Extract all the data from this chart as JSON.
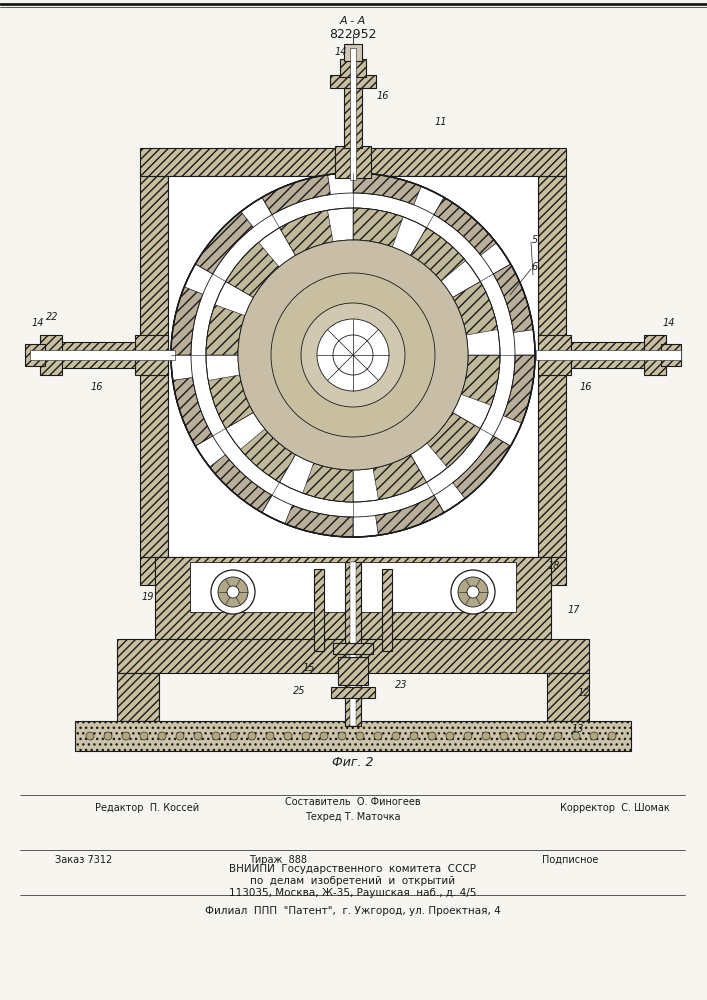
{
  "patent_number": "822952",
  "figure_label": "Фиг. 2",
  "bg_color": "#f7f5f0",
  "line_color": "#1a1a1a",
  "fc_hatch": "#c8bfa0",
  "fc_white": "#ffffff",
  "fc_dark": "#b0a888",
  "footer": {
    "editor": "Редактор  П. Коссей",
    "composer": "Составитель  О. Финогеев",
    "techred": "Техред Т. Маточка",
    "corrector": "Корректор  С. Шомак",
    "order": "Заказ 7312",
    "tirazh": "Тираж  888",
    "podpisnoe": "Подписное",
    "vniip1": "ВНИИПИ  Государственного  комитета  СССР",
    "vniip2": "по  делам  изобретений  и  открытий",
    "vniip3": "113035, Москва, Ж-35, Раушская  наб., д. 4/5",
    "filial": "Филиал  ППП  \"Патент\",  г. Ужгород, ул. Проектная, 4"
  }
}
